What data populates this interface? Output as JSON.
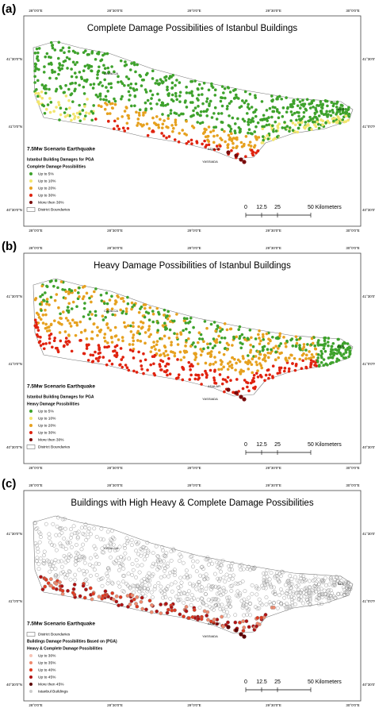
{
  "lon_labels": [
    "28°0'0\"E",
    "28°30'0\"E",
    "29°0'0\"E",
    "29°30'0\"E",
    "30°0'0\"E"
  ],
  "lat_labels": [
    "41°30'0\"N",
    "41°0'0\"N",
    "40°30'0\"N"
  ],
  "scale_labels": [
    "0",
    "12.5",
    "25",
    "50 Kilometers"
  ],
  "district_labels": [
    "CATALCA",
    "ADALAR",
    "YASSIADA",
    "SILE"
  ],
  "panels": [
    {
      "label": "(a)",
      "title": "Complete Damage Possibilities of Istanbul Buildings",
      "legend": [
        {
          "text": "7.5Mw Scenario Earthquake",
          "style": "heading"
        },
        {
          "text": "Istanbul Building Damages for PGA",
          "style": "bold"
        },
        {
          "text": "Complete Damage Possibilities",
          "style": "bold"
        },
        {
          "text": "Up to 5%",
          "color": "#3ea22c",
          "symbol": "dot"
        },
        {
          "text": "Up to 10%",
          "color": "#f2e56e",
          "symbol": "dot"
        },
        {
          "text": "Up to 20%",
          "color": "#e6a11f",
          "symbol": "dot"
        },
        {
          "text": "Up to 30%",
          "color": "#e0230f",
          "symbol": "dot"
        },
        {
          "text": "More then 30%",
          "color": "#7a0b0b",
          "symbol": "dot"
        },
        {
          "text": "District Boundaries",
          "color": "#ffffff",
          "symbol": "box"
        }
      ]
    },
    {
      "label": "(b)",
      "title": "Heavy Damage Possibilities of Istanbul Buildings",
      "legend": [
        {
          "text": "7.5Mw Scenario Earthquake",
          "style": "heading"
        },
        {
          "text": "Istanbul Building Damages for PGA",
          "style": "bold"
        },
        {
          "text": "Heavy Damage Possibilities",
          "style": "bold"
        },
        {
          "text": "Up to 5%",
          "color": "#3ea22c",
          "symbol": "dot"
        },
        {
          "text": "Up to 10%",
          "color": "#f2e56e",
          "symbol": "dot"
        },
        {
          "text": "Up to 20%",
          "color": "#e6a11f",
          "symbol": "dot"
        },
        {
          "text": "Up to 30%",
          "color": "#e0230f",
          "symbol": "dot"
        },
        {
          "text": "More then 30%",
          "color": "#7a0b0b",
          "symbol": "dot"
        },
        {
          "text": "District Boundaries",
          "color": "#ffffff",
          "symbol": "box"
        }
      ]
    },
    {
      "label": "(c)",
      "title": "Buildings with High Heavy & Complete Damage Possibilities",
      "legend": [
        {
          "text": "7.5Mw Scenario Earthquake",
          "style": "heading"
        },
        {
          "text": "District Boundaries",
          "color": "#ffffff",
          "symbol": "box"
        },
        {
          "text": "Buildings Damage Possibilities Based on (PGA)",
          "style": "bold"
        },
        {
          "text": "Heavy & Complete Damage Possibilities",
          "style": "bold"
        },
        {
          "text": "Up to 30%",
          "color": "#f6c3b5",
          "symbol": "dot"
        },
        {
          "text": "Up to 35%",
          "color": "#f08a6e",
          "symbol": "dot"
        },
        {
          "text": "Up to 40%",
          "color": "#e03a20",
          "symbol": "dot"
        },
        {
          "text": "Up to 45%",
          "color": "#b01212",
          "symbol": "dot"
        },
        {
          "text": "More then 45%",
          "color": "#5a0000",
          "symbol": "dot"
        },
        {
          "text": "Istanbul Buildings",
          "color": "#cccccc",
          "symbol": "dot"
        }
      ]
    }
  ]
}
